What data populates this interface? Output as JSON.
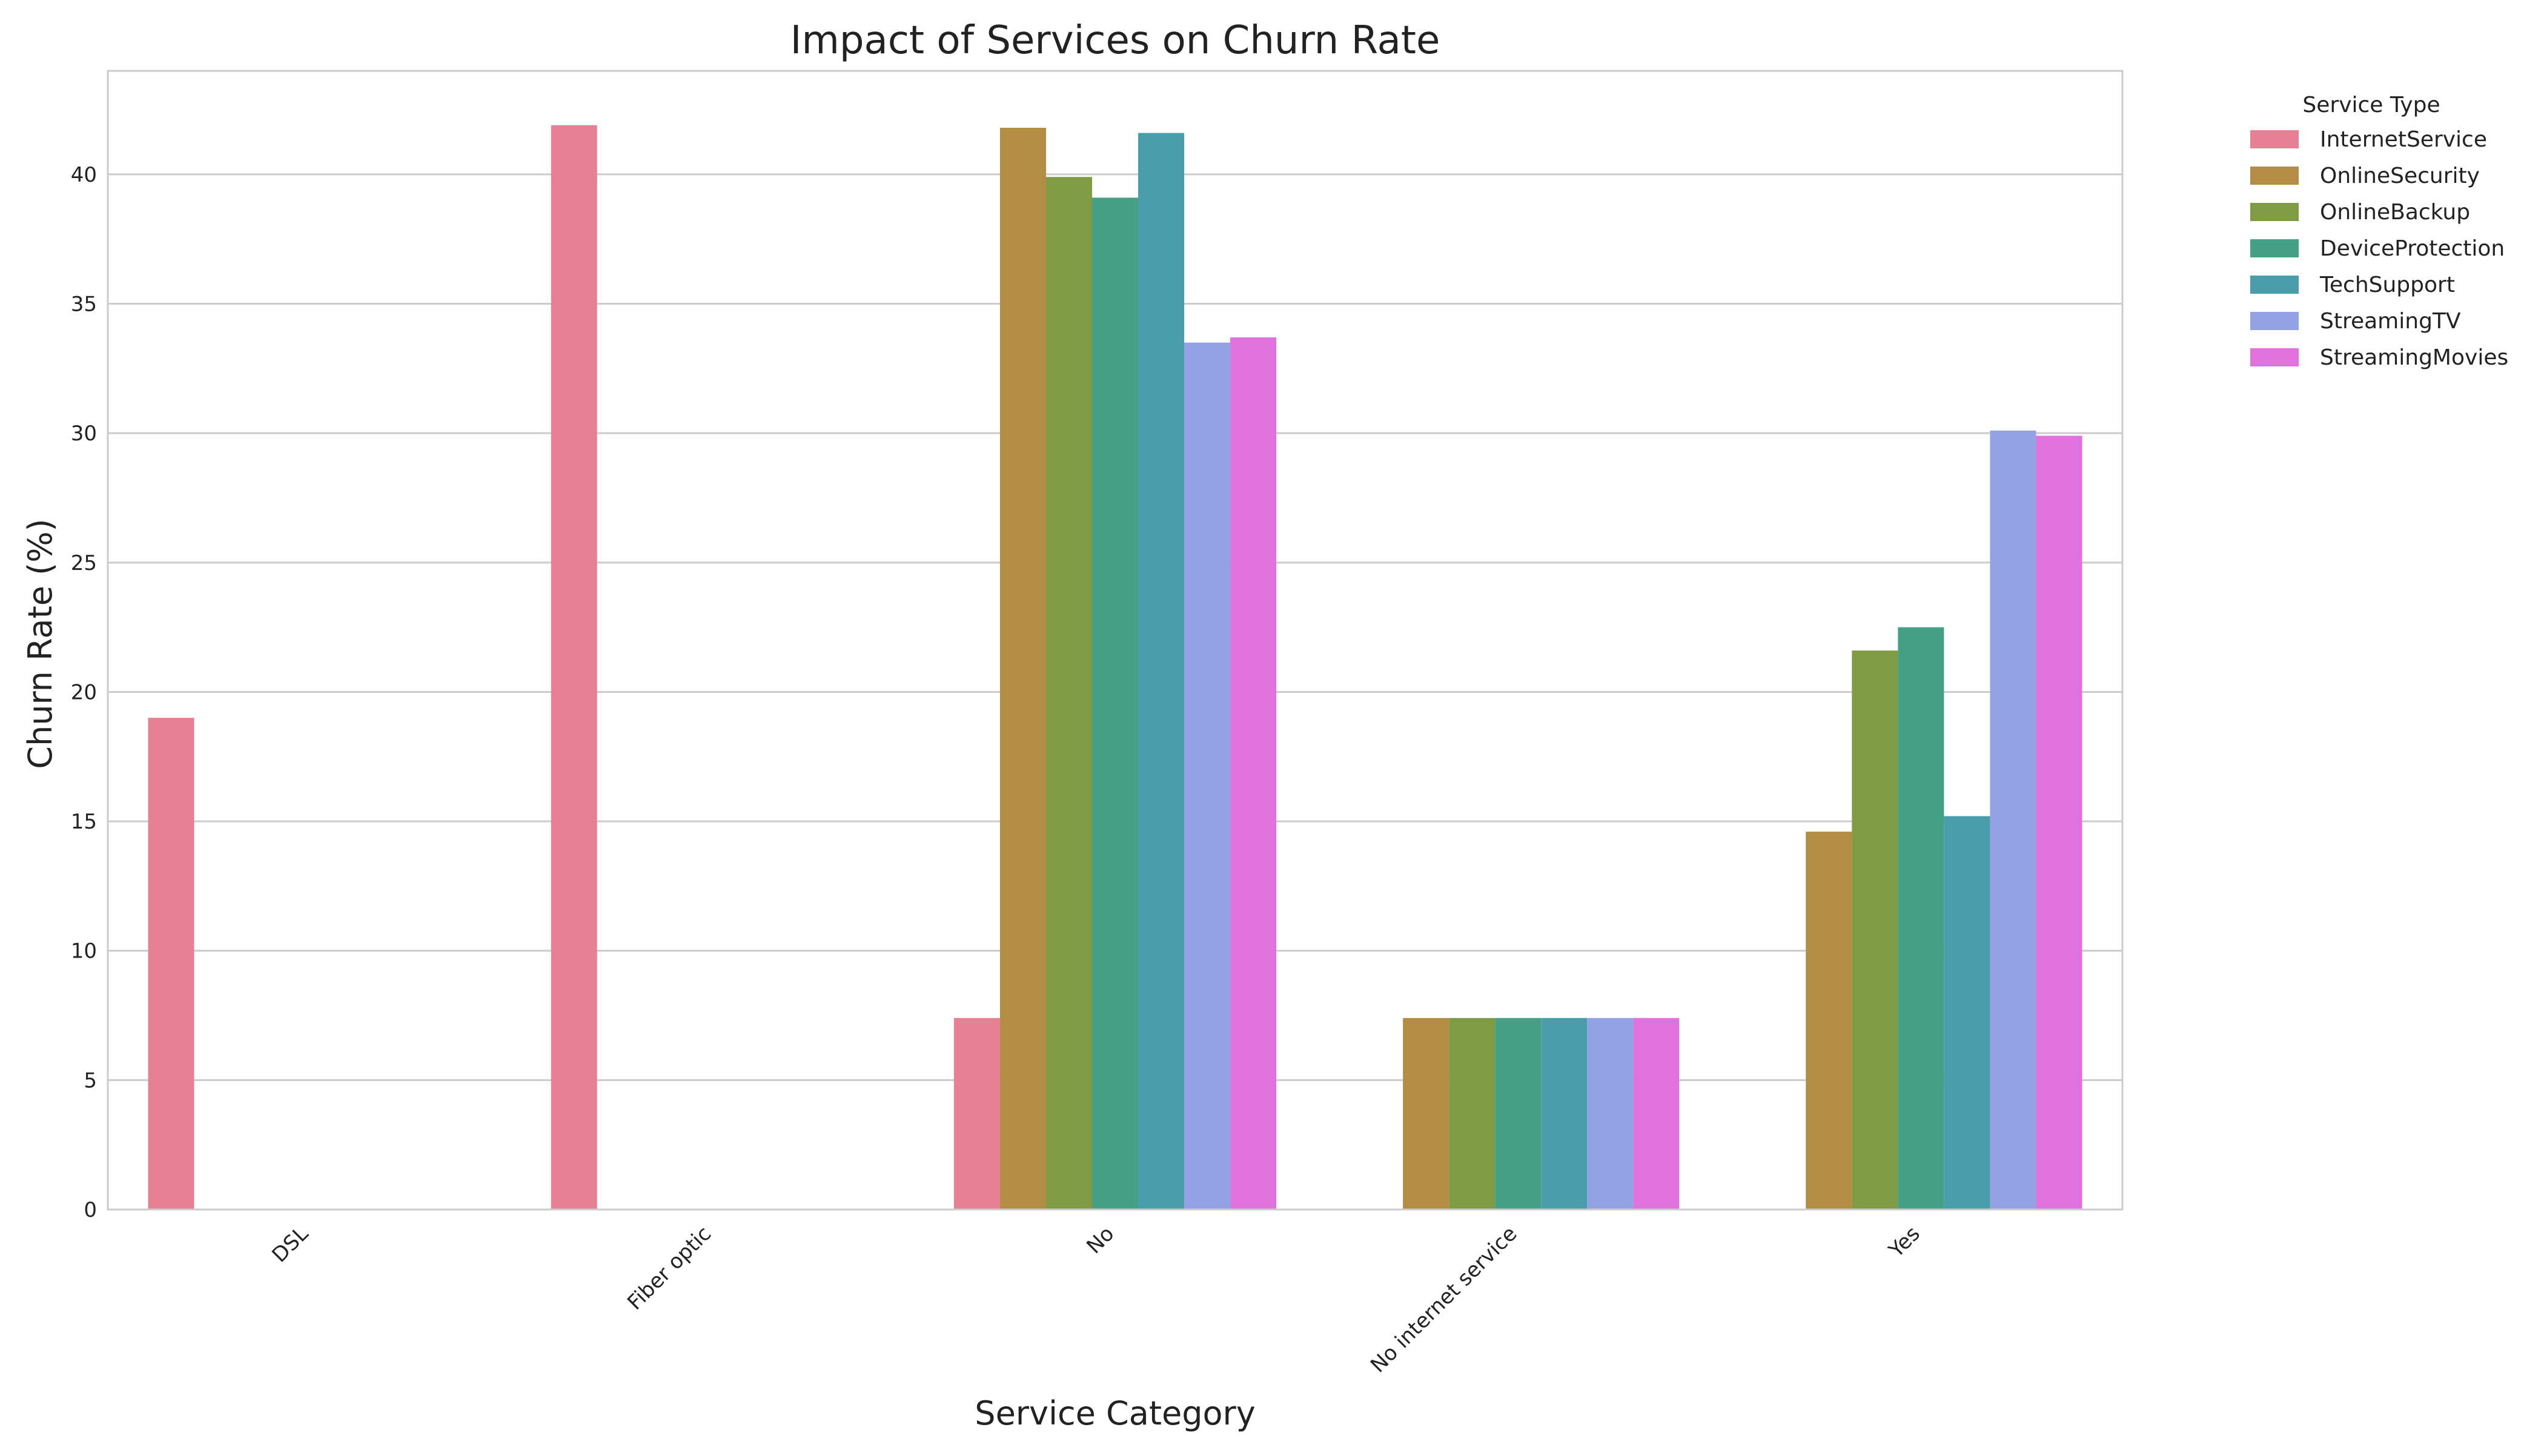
{
  "chart_data": {
    "type": "bar",
    "title": "Impact of Services on Churn Rate",
    "xlabel": "Service Category",
    "ylabel": "Churn Rate (%)",
    "categories": [
      "DSL",
      "Fiber optic",
      "No",
      "No internet service",
      "Yes"
    ],
    "ylim": [
      0,
      44
    ],
    "yticks": [
      0,
      5,
      10,
      15,
      20,
      25,
      30,
      35,
      40
    ],
    "grid": true,
    "legend_title": "Service Type",
    "legend_position": "outside-top-right",
    "series": [
      {
        "name": "InternetService",
        "color": "#e68193",
        "values": [
          19.0,
          41.9,
          7.4,
          null,
          null
        ]
      },
      {
        "name": "OnlineSecurity",
        "color": "#b38d44",
        "values": [
          null,
          null,
          41.8,
          7.4,
          14.6
        ]
      },
      {
        "name": "OnlineBackup",
        "color": "#7f9b44",
        "values": [
          null,
          null,
          39.9,
          7.4,
          21.6
        ]
      },
      {
        "name": "DeviceProtection",
        "color": "#45a185",
        "values": [
          null,
          null,
          39.1,
          7.4,
          22.5
        ]
      },
      {
        "name": "TechSupport",
        "color": "#4a9eab",
        "values": [
          null,
          null,
          41.6,
          7.4,
          15.2
        ]
      },
      {
        "name": "StreamingTV",
        "color": "#93a2e4",
        "values": [
          null,
          null,
          33.5,
          7.4,
          30.1
        ]
      },
      {
        "name": "StreamingMovies",
        "color": "#df72dc",
        "values": [
          null,
          null,
          33.7,
          7.4,
          29.9
        ]
      }
    ]
  }
}
